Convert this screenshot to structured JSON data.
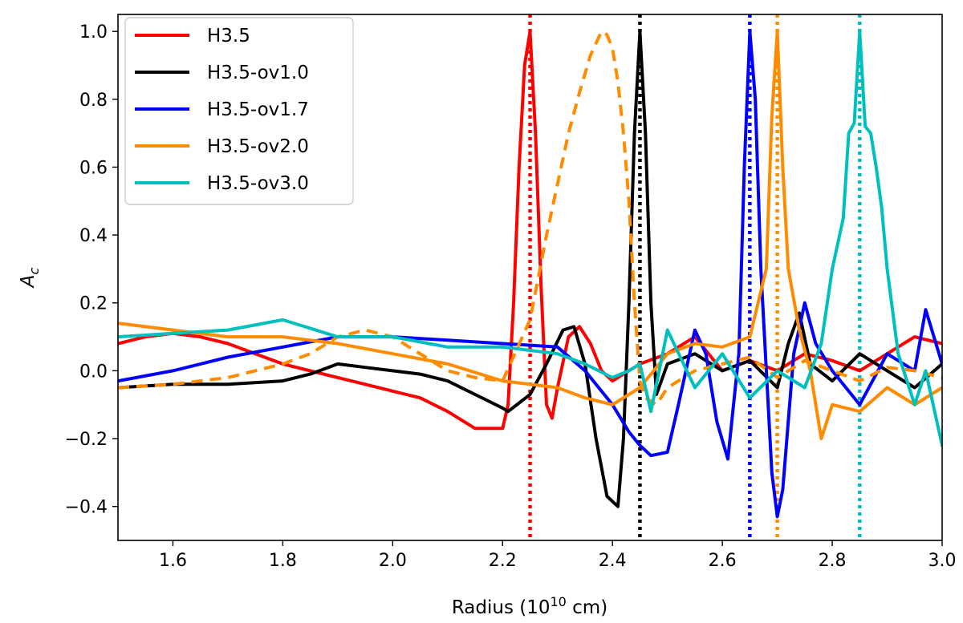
{
  "chart_data": {
    "type": "line",
    "xlabel_main": "Radius (10",
    "xlabel_sup": "10",
    "xlabel_tail": " cm)",
    "ylabel_main": "A",
    "ylabel_sub": "c",
    "xlim": [
      1.5,
      3.0
    ],
    "ylim": [
      -0.5,
      1.05
    ],
    "xticks": [
      1.6,
      1.8,
      2.0,
      2.2,
      2.4,
      2.6,
      2.8,
      3.0
    ],
    "xtick_labels": [
      "1.6",
      "1.8",
      "2.0",
      "2.2",
      "2.4",
      "2.6",
      "2.8",
      "3.0"
    ],
    "yticks": [
      -0.4,
      -0.2,
      0.0,
      0.2,
      0.4,
      0.6,
      0.8,
      1.0
    ],
    "ytick_labels": [
      "−0.4",
      "−0.2",
      "0.0",
      "0.2",
      "0.4",
      "0.6",
      "0.8",
      "1.0"
    ],
    "legend_position": "top-left",
    "series": [
      {
        "name": "H3.5",
        "color": "#ff0000",
        "x": [
          1.5,
          1.55,
          1.6,
          1.65,
          1.7,
          1.75,
          1.8,
          1.85,
          1.9,
          1.95,
          2.0,
          2.05,
          2.1,
          2.15,
          2.2,
          2.21,
          2.22,
          2.23,
          2.24,
          2.25,
          2.26,
          2.27,
          2.28,
          2.29,
          2.3,
          2.32,
          2.34,
          2.36,
          2.38,
          2.4,
          2.45,
          2.5,
          2.55,
          2.6,
          2.65,
          2.7,
          2.75,
          2.8,
          2.85,
          2.9,
          2.95,
          3.0
        ],
        "y": [
          0.08,
          0.1,
          0.11,
          0.1,
          0.08,
          0.05,
          0.02,
          0.0,
          -0.02,
          -0.04,
          -0.06,
          -0.08,
          -0.12,
          -0.17,
          -0.17,
          -0.1,
          0.2,
          0.6,
          0.9,
          1.0,
          0.7,
          0.25,
          -0.1,
          -0.14,
          -0.05,
          0.1,
          0.13,
          0.08,
          0.0,
          -0.03,
          0.02,
          0.05,
          0.1,
          0.0,
          0.03,
          0.0,
          0.05,
          0.03,
          0.0,
          0.05,
          0.1,
          0.08
        ]
      },
      {
        "name": "H3.5-ov1.0",
        "color": "#000000",
        "x": [
          1.5,
          1.6,
          1.7,
          1.8,
          1.85,
          1.9,
          1.95,
          2.0,
          2.05,
          2.1,
          2.15,
          2.2,
          2.21,
          2.25,
          2.28,
          2.31,
          2.33,
          2.35,
          2.37,
          2.39,
          2.41,
          2.42,
          2.43,
          2.44,
          2.45,
          2.46,
          2.47,
          2.48,
          2.5,
          2.55,
          2.6,
          2.65,
          2.7,
          2.72,
          2.74,
          2.76,
          2.8,
          2.85,
          2.9,
          2.95,
          3.0
        ],
        "y": [
          -0.05,
          -0.04,
          -0.04,
          -0.03,
          -0.01,
          0.02,
          0.01,
          0.0,
          -0.01,
          -0.03,
          -0.07,
          -0.11,
          -0.12,
          -0.07,
          0.02,
          0.12,
          0.13,
          0.02,
          -0.2,
          -0.37,
          -0.4,
          -0.2,
          0.2,
          0.7,
          1.0,
          0.7,
          0.2,
          -0.07,
          0.02,
          0.05,
          0.0,
          0.03,
          -0.05,
          0.08,
          0.17,
          0.02,
          -0.03,
          0.05,
          0.0,
          -0.05,
          0.02
        ]
      },
      {
        "name": "H3.5-ov1.7",
        "color": "#0000ff",
        "x": [
          1.5,
          1.6,
          1.7,
          1.8,
          1.9,
          2.0,
          2.1,
          2.2,
          2.3,
          2.35,
          2.4,
          2.43,
          2.45,
          2.47,
          2.5,
          2.52,
          2.55,
          2.57,
          2.59,
          2.61,
          2.63,
          2.64,
          2.65,
          2.66,
          2.67,
          2.69,
          2.7,
          2.71,
          2.73,
          2.75,
          2.77,
          2.8,
          2.85,
          2.9,
          2.95,
          2.97,
          3.0
        ],
        "y": [
          -0.03,
          0.0,
          0.04,
          0.07,
          0.1,
          0.1,
          0.09,
          0.08,
          0.07,
          0.0,
          -0.1,
          -0.18,
          -0.22,
          -0.25,
          -0.24,
          -0.1,
          0.12,
          0.05,
          -0.15,
          -0.26,
          0.05,
          0.6,
          1.0,
          0.8,
          0.3,
          -0.3,
          -0.43,
          -0.35,
          0.05,
          0.2,
          0.08,
          0.0,
          -0.1,
          0.05,
          0.0,
          0.18,
          0.02
        ]
      },
      {
        "name": "H3.5-ov2.0",
        "color": "#ff8c00",
        "x": [
          1.5,
          1.6,
          1.7,
          1.8,
          1.9,
          2.0,
          2.1,
          2.2,
          2.3,
          2.35,
          2.4,
          2.45,
          2.5,
          2.55,
          2.6,
          2.65,
          2.68,
          2.69,
          2.7,
          2.71,
          2.72,
          2.74,
          2.76,
          2.78,
          2.8,
          2.85,
          2.9,
          2.95,
          3.0
        ],
        "y": [
          0.14,
          0.12,
          0.1,
          0.1,
          0.08,
          0.05,
          0.02,
          -0.03,
          -0.05,
          -0.08,
          -0.1,
          -0.05,
          0.05,
          0.08,
          0.07,
          0.1,
          0.3,
          0.75,
          1.0,
          0.6,
          0.3,
          0.12,
          0.0,
          -0.2,
          -0.1,
          -0.12,
          -0.05,
          -0.1,
          -0.05
        ]
      },
      {
        "name": "H3.5-ov2.0 (dashed)",
        "color": "#ff8c00",
        "dashed": true,
        "legend": false,
        "x": [
          1.5,
          1.6,
          1.7,
          1.8,
          1.85,
          1.9,
          1.95,
          2.0,
          2.05,
          2.1,
          2.15,
          2.2,
          2.25,
          2.28,
          2.3,
          2.32,
          2.34,
          2.36,
          2.38,
          2.39,
          2.4,
          2.41,
          2.42,
          2.43,
          2.44,
          2.45,
          2.46,
          2.48,
          2.5,
          2.55,
          2.6,
          2.65,
          2.7,
          2.75,
          2.8,
          2.85,
          2.9,
          2.95,
          3.0
        ],
        "y": [
          -0.05,
          -0.04,
          -0.02,
          0.02,
          0.05,
          0.1,
          0.12,
          0.1,
          0.05,
          0.0,
          -0.02,
          -0.03,
          0.15,
          0.4,
          0.55,
          0.7,
          0.82,
          0.93,
          1.0,
          0.99,
          0.95,
          0.85,
          0.7,
          0.5,
          0.2,
          -0.03,
          -0.08,
          -0.1,
          -0.05,
          0.0,
          0.02,
          0.04,
          -0.02,
          0.03,
          0.0,
          -0.03,
          0.01,
          0.0,
          -0.02
        ]
      },
      {
        "name": "H3.5-ov3.0",
        "color": "#00bfbf",
        "x": [
          1.5,
          1.6,
          1.7,
          1.8,
          1.9,
          2.0,
          2.1,
          2.2,
          2.3,
          2.35,
          2.4,
          2.43,
          2.45,
          2.47,
          2.5,
          2.55,
          2.6,
          2.65,
          2.7,
          2.75,
          2.78,
          2.8,
          2.82,
          2.83,
          2.84,
          2.85,
          2.86,
          2.87,
          2.88,
          2.89,
          2.9,
          2.92,
          2.95,
          2.97,
          3.0
        ],
        "y": [
          0.1,
          0.11,
          0.12,
          0.15,
          0.1,
          0.1,
          0.07,
          0.07,
          0.05,
          0.02,
          -0.02,
          0.0,
          0.02,
          -0.12,
          0.12,
          -0.05,
          0.05,
          -0.08,
          0.0,
          -0.05,
          0.08,
          0.3,
          0.45,
          0.7,
          0.73,
          1.0,
          0.72,
          0.7,
          0.6,
          0.48,
          0.3,
          0.05,
          -0.1,
          0.0,
          -0.22
        ]
      }
    ],
    "vlines": [
      {
        "x": 2.25,
        "color": "#ff0000"
      },
      {
        "x": 2.45,
        "color": "#000000"
      },
      {
        "x": 2.65,
        "color": "#0000ff"
      },
      {
        "x": 2.7,
        "color": "#ff8c00"
      },
      {
        "x": 2.85,
        "color": "#00bfbf"
      }
    ]
  }
}
